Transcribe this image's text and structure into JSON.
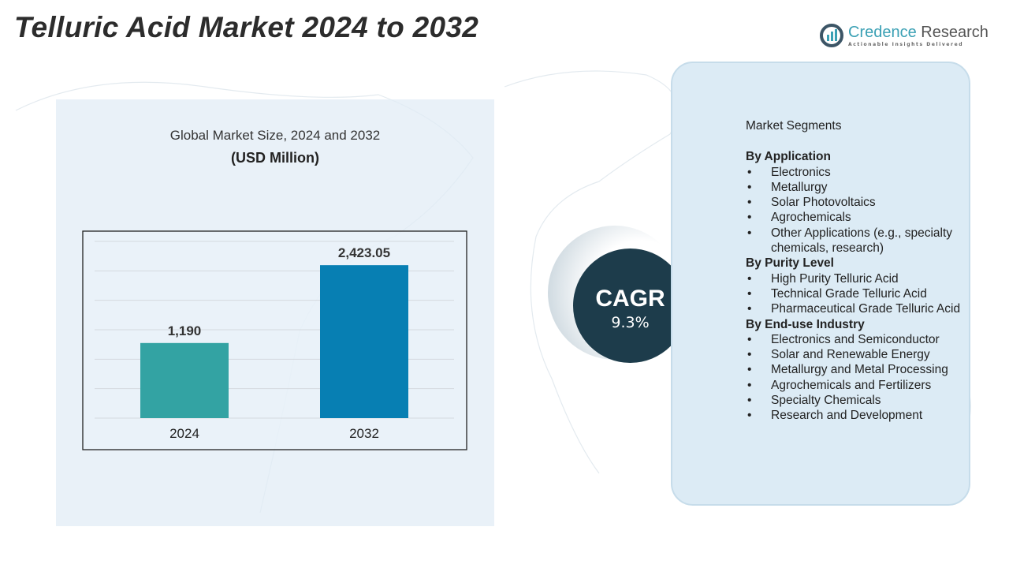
{
  "title": "Telluric Acid Market 2024 to 2032",
  "logo": {
    "name_part1": "Credence",
    "name_part2": "Research",
    "tagline": "Actionable Insights Delivered"
  },
  "chart_data": {
    "type": "bar",
    "title": "Global Market Size, 2024 and 2032",
    "subtitle": "(USD Million)",
    "categories": [
      "2024",
      "2032"
    ],
    "values": [
      1190,
      2423.05
    ],
    "data_labels": [
      "1,190",
      "2,423.05"
    ],
    "colors": [
      "#33a3a3",
      "#077fb3"
    ],
    "ylim": [
      0,
      2600
    ],
    "grid": true
  },
  "cagr": {
    "label": "CAGR",
    "value": "9.3%"
  },
  "segments": {
    "heading": "Market Segments",
    "groups": [
      {
        "title": "By Application",
        "items": [
          "Electronics",
          "Metallurgy",
          "Solar Photovoltaics",
          "Agrochemicals",
          "Other Applications (e.g., specialty chemicals, research)"
        ]
      },
      {
        "title": "By Purity Level",
        "items": [
          "High Purity Telluric Acid",
          "Technical Grade Telluric Acid",
          "Pharmaceutical Grade Telluric Acid"
        ]
      },
      {
        "title": "By End-use Industry",
        "items": [
          "Electronics and Semiconductor",
          "Solar and Renewable Energy",
          "Metallurgy and Metal Processing",
          "Agrochemicals and Fertilizers",
          "Specialty Chemicals",
          "Research and Development"
        ]
      }
    ]
  }
}
